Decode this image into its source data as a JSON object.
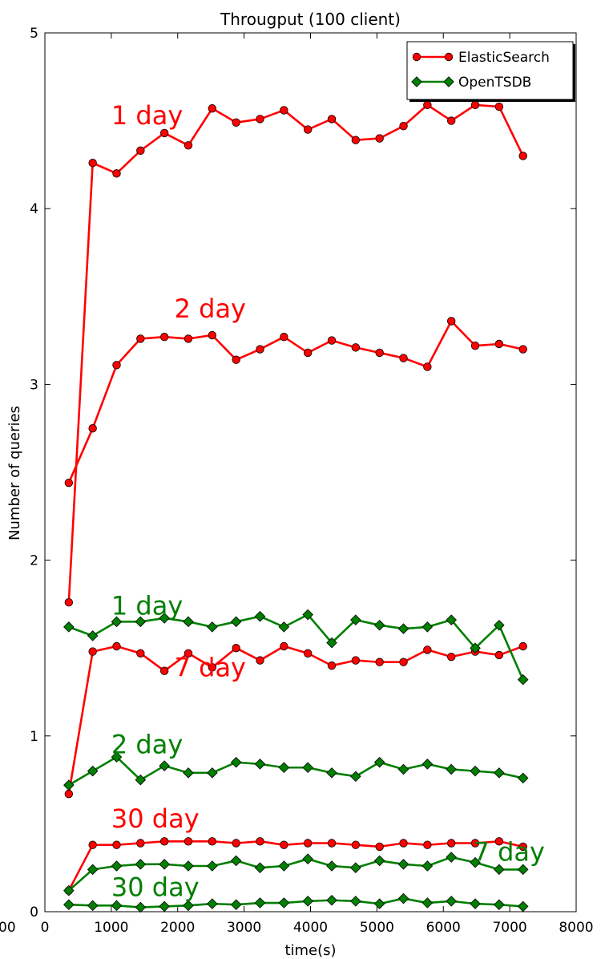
{
  "chart_data": {
    "type": "line",
    "title": "Througput (100 client)",
    "xlabel": "time(s)",
    "ylabel": "Number of queries",
    "xlim": [
      0,
      8000
    ],
    "ylim": [
      0,
      5
    ],
    "grid": false,
    "legend_position": "top-right",
    "x_ticks": [
      0,
      1000,
      2000,
      3000,
      4000,
      5000,
      6000,
      7000,
      8000
    ],
    "x_tick_labels": [
      "0",
      "1000",
      "2000",
      "3000",
      "4000",
      "5000",
      "6000",
      "7000",
      "8000"
    ],
    "y_ticks": [
      0,
      1,
      2,
      3,
      4,
      5
    ],
    "y_tick_labels": [
      "0",
      "1",
      "2",
      "3",
      "4",
      "5"
    ],
    "left_edge_label": "00",
    "legend": [
      {
        "label": "ElasticSearch",
        "color": "#ff0000",
        "marker": "circle"
      },
      {
        "label": "OpenTSDB",
        "color": "#007f00",
        "marker": "diamond"
      }
    ],
    "x": [
      360,
      720,
      1080,
      1440,
      1800,
      2160,
      2520,
      2880,
      3240,
      3600,
      3960,
      4320,
      4680,
      5040,
      5400,
      5760,
      6120,
      6480,
      6840,
      7200
    ],
    "series": [
      {
        "group": "ElasticSearch",
        "color": "#ff0000",
        "marker": "circle",
        "values": [
          1.76,
          4.26,
          4.2,
          4.33,
          4.43,
          4.36,
          4.57,
          4.49,
          4.51,
          4.56,
          4.45,
          4.51,
          4.39,
          4.4,
          4.47,
          4.59,
          4.5,
          4.59,
          4.58,
          4.3
        ]
      },
      {
        "group": "ElasticSearch",
        "color": "#ff0000",
        "marker": "circle",
        "values": [
          2.44,
          2.75,
          3.11,
          3.26,
          3.27,
          3.26,
          3.28,
          3.14,
          3.2,
          3.27,
          3.18,
          3.25,
          3.21,
          3.18,
          3.15,
          3.1,
          3.36,
          3.22,
          3.23,
          3.2
        ]
      },
      {
        "group": "ElasticSearch",
        "color": "#ff0000",
        "marker": "circle",
        "values": [
          0.67,
          1.48,
          1.51,
          1.47,
          1.37,
          1.47,
          1.39,
          1.5,
          1.43,
          1.51,
          1.47,
          1.4,
          1.43,
          1.42,
          1.42,
          1.49,
          1.45,
          1.48,
          1.46,
          1.51
        ]
      },
      {
        "group": "ElasticSearch",
        "color": "#ff0000",
        "marker": "circle",
        "values": [
          0.12,
          0.38,
          0.38,
          0.39,
          0.4,
          0.4,
          0.4,
          0.39,
          0.4,
          0.38,
          0.39,
          0.39,
          0.38,
          0.37,
          0.39,
          0.38,
          0.39,
          0.39,
          0.4,
          0.37
        ]
      },
      {
        "group": "OpenTSDB",
        "color": "#007f00",
        "marker": "diamond",
        "values": [
          1.62,
          1.57,
          1.65,
          1.65,
          1.67,
          1.65,
          1.62,
          1.65,
          1.68,
          1.62,
          1.69,
          1.53,
          1.66,
          1.63,
          1.61,
          1.62,
          1.66,
          1.5,
          1.63,
          1.32
        ]
      },
      {
        "group": "OpenTSDB",
        "color": "#007f00",
        "marker": "diamond",
        "values": [
          0.72,
          0.8,
          0.88,
          0.75,
          0.83,
          0.79,
          0.79,
          0.85,
          0.84,
          0.82,
          0.82,
          0.79,
          0.77,
          0.85,
          0.81,
          0.84,
          0.81,
          0.8,
          0.79,
          0.76
        ]
      },
      {
        "group": "OpenTSDB",
        "color": "#007f00",
        "marker": "diamond",
        "values": [
          0.12,
          0.24,
          0.26,
          0.27,
          0.27,
          0.26,
          0.26,
          0.29,
          0.25,
          0.26,
          0.3,
          0.26,
          0.25,
          0.29,
          0.27,
          0.26,
          0.31,
          0.28,
          0.24,
          0.24
        ]
      },
      {
        "group": "OpenTSDB",
        "color": "#007f00",
        "marker": "diamond",
        "values": [
          0.04,
          0.035,
          0.035,
          0.025,
          0.03,
          0.035,
          0.045,
          0.04,
          0.05,
          0.05,
          0.06,
          0.065,
          0.06,
          0.045,
          0.075,
          0.05,
          0.06,
          0.045,
          0.04,
          0.03
        ]
      }
    ],
    "annotations": [
      {
        "text": "1 day",
        "x": 1000,
        "y": 4.48,
        "color": "#ff0000"
      },
      {
        "text": "2 day",
        "x": 1950,
        "y": 3.38,
        "color": "#ff0000"
      },
      {
        "text": "7 day",
        "x": 1950,
        "y": 1.34,
        "color": "#ff0000"
      },
      {
        "text": "30 day",
        "x": 1000,
        "y": 0.48,
        "color": "#ff0000"
      },
      {
        "text": "1 day",
        "x": 1000,
        "y": 1.69,
        "color": "#007f00"
      },
      {
        "text": "2 day",
        "x": 1000,
        "y": 0.9,
        "color": "#007f00"
      },
      {
        "text": "7 day",
        "x": 6450,
        "y": 0.29,
        "color": "#007f00"
      },
      {
        "text": "30 day",
        "x": 1000,
        "y": 0.09,
        "color": "#007f00"
      }
    ]
  }
}
